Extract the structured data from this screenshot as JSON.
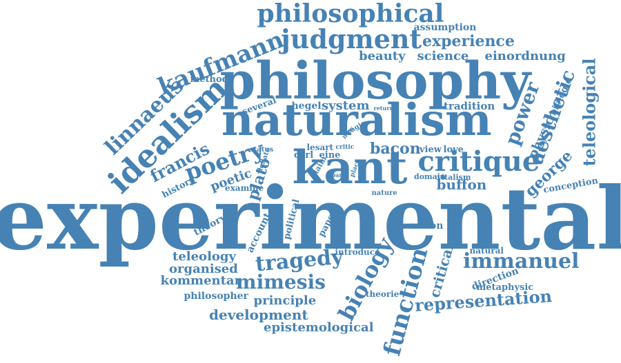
{
  "cloud": {
    "color": "#4682b4",
    "words": [
      "experimental",
      "philosophy",
      "naturalism",
      "kant",
      "philosophical",
      "judgment",
      "critique",
      "idealism",
      "kaufmann",
      "poetry",
      "tragedy",
      "immanuel",
      "biology",
      "function",
      "representation",
      "linnaeus",
      "francis",
      "experience",
      "beauty",
      "science",
      "einordnung",
      "power",
      "aesthetic",
      "teleological",
      "george",
      "physic",
      "biologie",
      "system",
      "tradition",
      "hegel",
      "several",
      "method",
      "assumption",
      "bacon",
      "view",
      "love",
      "plato",
      "poetic",
      "history",
      "buffon",
      "conception",
      "mimesis",
      "kommentar",
      "teleology",
      "organised",
      "philosopher",
      "principle",
      "development",
      "epistemological",
      "critical",
      "direction",
      "metaphysic",
      "natural",
      "introduce",
      "theorie",
      "action",
      "theory",
      "account",
      "political",
      "paper",
      "examine",
      "domain",
      "vitalism",
      "nature",
      "lesart",
      "carl",
      "eine",
      "status",
      "deflate",
      "claim",
      "place",
      "part",
      "tragic",
      "new",
      "critic",
      "return"
    ]
  }
}
